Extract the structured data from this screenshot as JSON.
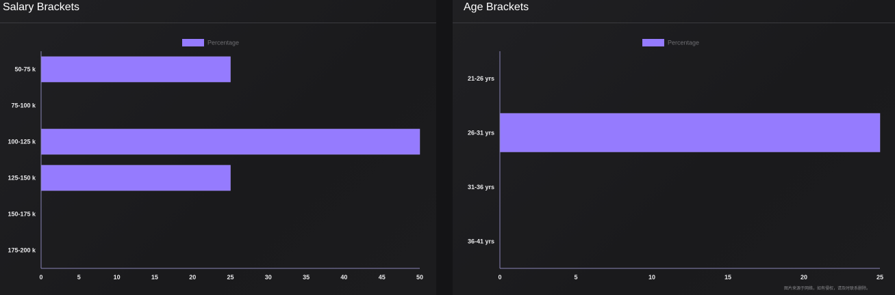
{
  "accent_color": "#957BFE",
  "panels": [
    {
      "title": "Salary Brackets",
      "chart_data": {
        "type": "bar",
        "orientation": "horizontal",
        "title": "Salary Brackets",
        "categories": [
          "50-75 k",
          "75-100 k",
          "100-125 k",
          "125-150 k",
          "150-175 k",
          "175-200 k"
        ],
        "series": [
          {
            "name": "Percentage",
            "values": [
              25,
              0,
              50,
              25,
              0,
              0
            ],
            "color": "#957BFE"
          }
        ],
        "xlim": [
          0,
          50
        ],
        "xticks": [
          0,
          5,
          10,
          15,
          20,
          25,
          30,
          35,
          40,
          45,
          50
        ],
        "legend": "top-center",
        "grid": false
      }
    },
    {
      "title": "Age Brackets",
      "chart_data": {
        "type": "bar",
        "orientation": "horizontal",
        "title": "Age Brackets",
        "categories": [
          "21-26 yrs",
          "26-31 yrs",
          "31-36 yrs",
          "36-41 yrs"
        ],
        "series": [
          {
            "name": "Percentage",
            "values": [
              0,
              25,
              0,
              0
            ],
            "color": "#957BFE"
          }
        ],
        "xlim": [
          0,
          25
        ],
        "xticks": [
          0,
          5,
          10,
          15,
          20,
          25
        ],
        "legend": "top-center",
        "grid": false
      }
    }
  ],
  "footer_note": "图片来源于网络，如有侵权，请及时联系删除。"
}
